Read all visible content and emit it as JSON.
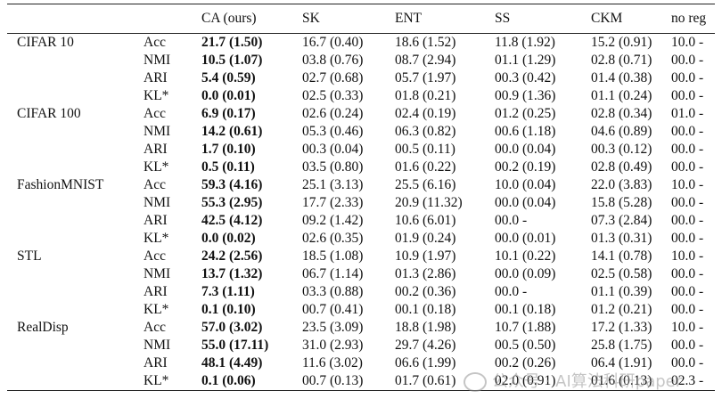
{
  "table": {
    "columns": [
      "",
      "",
      "CA (ours)",
      "SK",
      "ENT",
      "SS",
      "CKM",
      "no reg"
    ],
    "groups": [
      {
        "dataset": "CIFAR 10",
        "rows": [
          {
            "metric": "Acc",
            "values": [
              "21.7 (1.50)",
              "16.7 (0.40)",
              "18.6 (1.52)",
              "11.8 (1.92)",
              "15.2 (0.91)",
              "10.0 -"
            ]
          },
          {
            "metric": "NMI",
            "values": [
              "10.5 (1.07)",
              "03.8 (0.76)",
              "08.7 (2.94)",
              "01.1 (1.29)",
              "02.8 (0.71)",
              "00.0 -"
            ]
          },
          {
            "metric": "ARI",
            "values": [
              "5.4 (0.59)",
              "02.7 (0.68)",
              "05.7 (1.97)",
              "00.3 (0.42)",
              "01.4 (0.38)",
              "00.0 -"
            ]
          },
          {
            "metric": "KL*",
            "values": [
              "0.0 (0.01)",
              "02.5 (0.33)",
              "01.8 (0.21)",
              "00.9 (1.36)",
              "01.1 (0.24)",
              "00.0 -"
            ]
          }
        ]
      },
      {
        "dataset": "CIFAR 100",
        "rows": [
          {
            "metric": "Acc",
            "values": [
              "6.9 (0.17)",
              "02.6 (0.24)",
              "02.4 (0.19)",
              "01.2 (0.25)",
              "02.8 (0.34)",
              "01.0 -"
            ]
          },
          {
            "metric": "NMI",
            "values": [
              "14.2 (0.61)",
              "05.3 (0.46)",
              "06.3 (0.82)",
              "00.6 (1.18)",
              "04.6 (0.89)",
              "00.0 -"
            ]
          },
          {
            "metric": "ARI",
            "values": [
              "1.7 (0.10)",
              "00.3 (0.04)",
              "00.5 (0.11)",
              "00.0 (0.04)",
              "00.3 (0.12)",
              "00.0 -"
            ]
          },
          {
            "metric": "KL*",
            "values": [
              "0.5 (0.11)",
              "03.5 (0.80)",
              "01.6 (0.22)",
              "00.2 (0.19)",
              "02.8 (0.49)",
              "00.0 -"
            ]
          }
        ]
      },
      {
        "dataset": "FashionMNIST",
        "rows": [
          {
            "metric": "Acc",
            "values": [
              "59.3 (4.16)",
              "25.1 (3.13)",
              "25.5 (6.16)",
              "10.0 (0.04)",
              "22.0 (3.83)",
              "10.0 -"
            ]
          },
          {
            "metric": "NMI",
            "values": [
              "55.3 (2.95)",
              "17.7 (2.33)",
              "20.9 (11.32)",
              "00.0 (0.04)",
              "15.8 (5.28)",
              "00.0 -"
            ]
          },
          {
            "metric": "ARI",
            "values": [
              "42.5 (4.12)",
              "09.2 (1.42)",
              "10.6 (6.01)",
              "00.0 -",
              "07.3 (2.84)",
              "00.0 -"
            ]
          },
          {
            "metric": "KL*",
            "values": [
              "0.0 (0.02)",
              "02.6 (0.35)",
              "01.9 (0.24)",
              "00.0 (0.01)",
              "01.3 (0.31)",
              "00.0 -"
            ]
          }
        ]
      },
      {
        "dataset": "STL",
        "rows": [
          {
            "metric": "Acc",
            "values": [
              "24.2 (2.56)",
              "18.5 (1.08)",
              "10.9 (1.97)",
              "10.1 (0.22)",
              "14.1 (0.78)",
              "10.0 -"
            ]
          },
          {
            "metric": "NMI",
            "values": [
              "13.7 (1.32)",
              "06.7 (1.14)",
              "01.3 (2.86)",
              "00.0 (0.09)",
              "02.5 (0.58)",
              "00.0 -"
            ]
          },
          {
            "metric": "ARI",
            "values": [
              "7.3 (1.11)",
              "03.3 (0.88)",
              "00.2 (0.36)",
              "00.0 -",
              "01.1 (0.39)",
              "00.0 -"
            ]
          },
          {
            "metric": "KL*",
            "values": [
              "0.1 (0.10)",
              "00.7 (0.41)",
              "00.1 (0.18)",
              "00.1 (0.18)",
              "01.2 (0.21)",
              "00.0 -"
            ]
          }
        ]
      },
      {
        "dataset": "RealDisp",
        "rows": [
          {
            "metric": "Acc",
            "values": [
              "57.0 (3.02)",
              "23.5 (3.09)",
              "18.8 (1.98)",
              "10.7 (1.88)",
              "17.2 (1.33)",
              "10.0 -"
            ]
          },
          {
            "metric": "NMI",
            "values": [
              "55.0 (17.11)",
              "31.0 (2.93)",
              "29.7 (4.26)",
              "00.5 (0.50)",
              "25.8 (1.75)",
              "00.0 -"
            ]
          },
          {
            "metric": "ARI",
            "values": [
              "48.1 (4.49)",
              "11.6 (3.02)",
              "06.6 (1.99)",
              "00.2 (0.26)",
              "06.4 (1.91)",
              "00.0 -"
            ]
          },
          {
            "metric": "KL*",
            "values": [
              "0.1 (0.06)",
              "00.7 (0.13)",
              "01.7 (0.61)",
              "02.0 (0.91)",
              "01.6 (0.13)",
              "02.3 -"
            ]
          }
        ]
      }
    ]
  },
  "watermark": {
    "text": "公众号 · AI算法科研paper"
  }
}
